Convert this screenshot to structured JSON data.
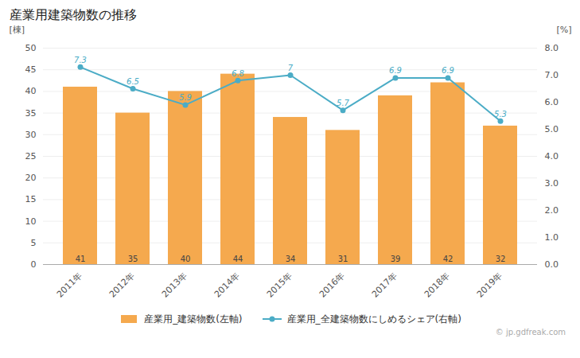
{
  "chart_data": {
    "type": "bar",
    "title": "産業用建築物数の推移",
    "categories": [
      "2011年",
      "2012年",
      "2013年",
      "2014年",
      "2015年",
      "2016年",
      "2017年",
      "2018年",
      "2019年"
    ],
    "series": [
      {
        "name": "産業用_建築物数(左軸)",
        "type": "bar",
        "color": "#F5A94E",
        "values": [
          41,
          35,
          40,
          44,
          34,
          31,
          39,
          42,
          32
        ]
      },
      {
        "name": "産業用_全建築物数にしめるシェア(右軸)",
        "type": "line",
        "color": "#4BACC6",
        "marker": "circle",
        "axis": "y2",
        "values": [
          7.3,
          6.5,
          5.9,
          6.8,
          7.0,
          5.7,
          6.9,
          6.9,
          5.3
        ]
      }
    ],
    "ylabel": "[棟]",
    "y2label": "[%]",
    "ylim": [
      0,
      50
    ],
    "yticks": [
      0,
      5,
      10,
      15,
      20,
      25,
      30,
      35,
      40,
      45,
      50
    ],
    "y2lim": [
      0.0,
      8.0
    ],
    "y2ticks": [
      {
        "value": 0,
        "label": "0.0"
      },
      {
        "value": 1,
        "label": "1.0"
      },
      {
        "value": 2,
        "label": "2.0"
      },
      {
        "value": 3,
        "label": "3.0"
      },
      {
        "value": 4,
        "label": "4.0"
      },
      {
        "value": 5,
        "label": "5.0"
      },
      {
        "value": 6,
        "label": "6.0"
      },
      {
        "value": 7,
        "label": "7.0"
      },
      {
        "value": 8,
        "label": "8.0"
      }
    ],
    "grid": true,
    "legend": "bottom",
    "data_labels": true,
    "annotations": [
      "© jp.gdfreak.com"
    ]
  }
}
